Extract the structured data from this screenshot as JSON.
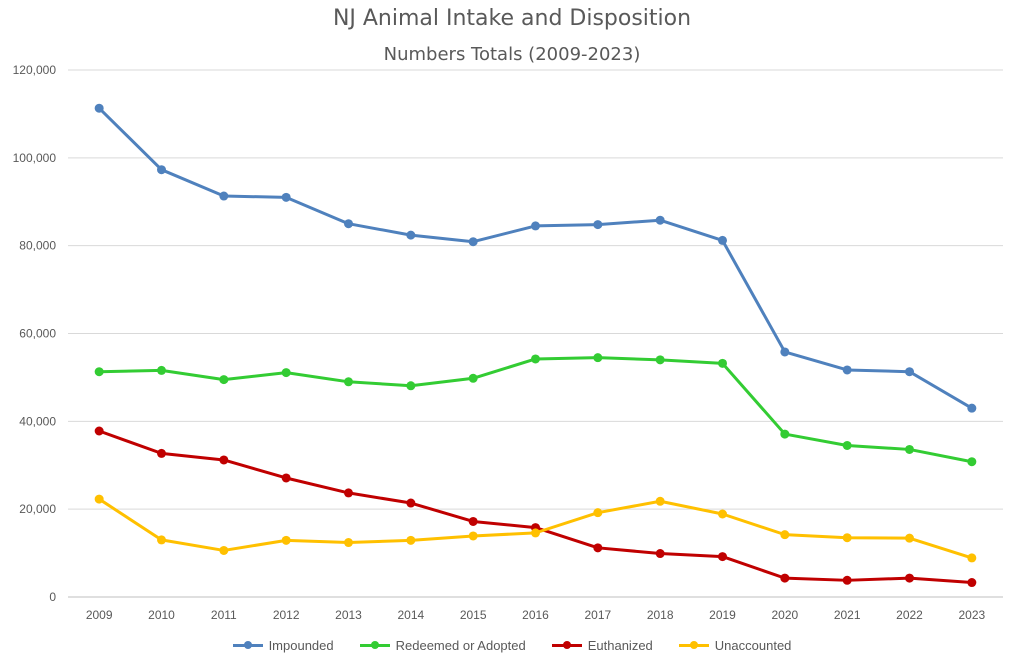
{
  "chart_data": {
    "type": "line",
    "title": "NJ Animal Intake and Disposition",
    "subtitle": "Numbers Totals (2009-2023)",
    "xlabel": "",
    "ylabel": "",
    "categories": [
      "2009",
      "2010",
      "2011",
      "2012",
      "2013",
      "2014",
      "2015",
      "2016",
      "2017",
      "2018",
      "2019",
      "2020",
      "2021",
      "2022",
      "2023"
    ],
    "ylim": [
      0,
      120000
    ],
    "yticks": [
      0,
      20000,
      40000,
      60000,
      80000,
      100000,
      120000
    ],
    "ytick_labels": [
      "0",
      "20,000",
      "40,000",
      "60,000",
      "80,000",
      "100,000",
      "120,000"
    ],
    "grid": true,
    "legend_position": "bottom",
    "series": [
      {
        "name": "Impounded",
        "color": "#4F81BD",
        "values": [
          111300,
          97300,
          91300,
          91000,
          85000,
          82400,
          80900,
          84500,
          84800,
          85800,
          81200,
          55800,
          51700,
          51300,
          43000
        ]
      },
      {
        "name": "Redeemed or Adopted",
        "color": "#33CC33",
        "values": [
          51300,
          51600,
          49500,
          51100,
          49000,
          48100,
          49800,
          54200,
          54500,
          54000,
          53200,
          37100,
          34500,
          33600,
          30800
        ]
      },
      {
        "name": "Euthanized",
        "color": "#C00000",
        "values": [
          37800,
          32700,
          31200,
          27100,
          23700,
          21400,
          17200,
          15800,
          11200,
          9900,
          9200,
          4300,
          3800,
          4300,
          3300
        ]
      },
      {
        "name": "Unaccounted",
        "color": "#FFC000",
        "values": [
          22300,
          13000,
          10600,
          12900,
          12400,
          12900,
          13900,
          14600,
          19200,
          21800,
          18900,
          14200,
          13500,
          13400,
          8900
        ]
      }
    ]
  }
}
